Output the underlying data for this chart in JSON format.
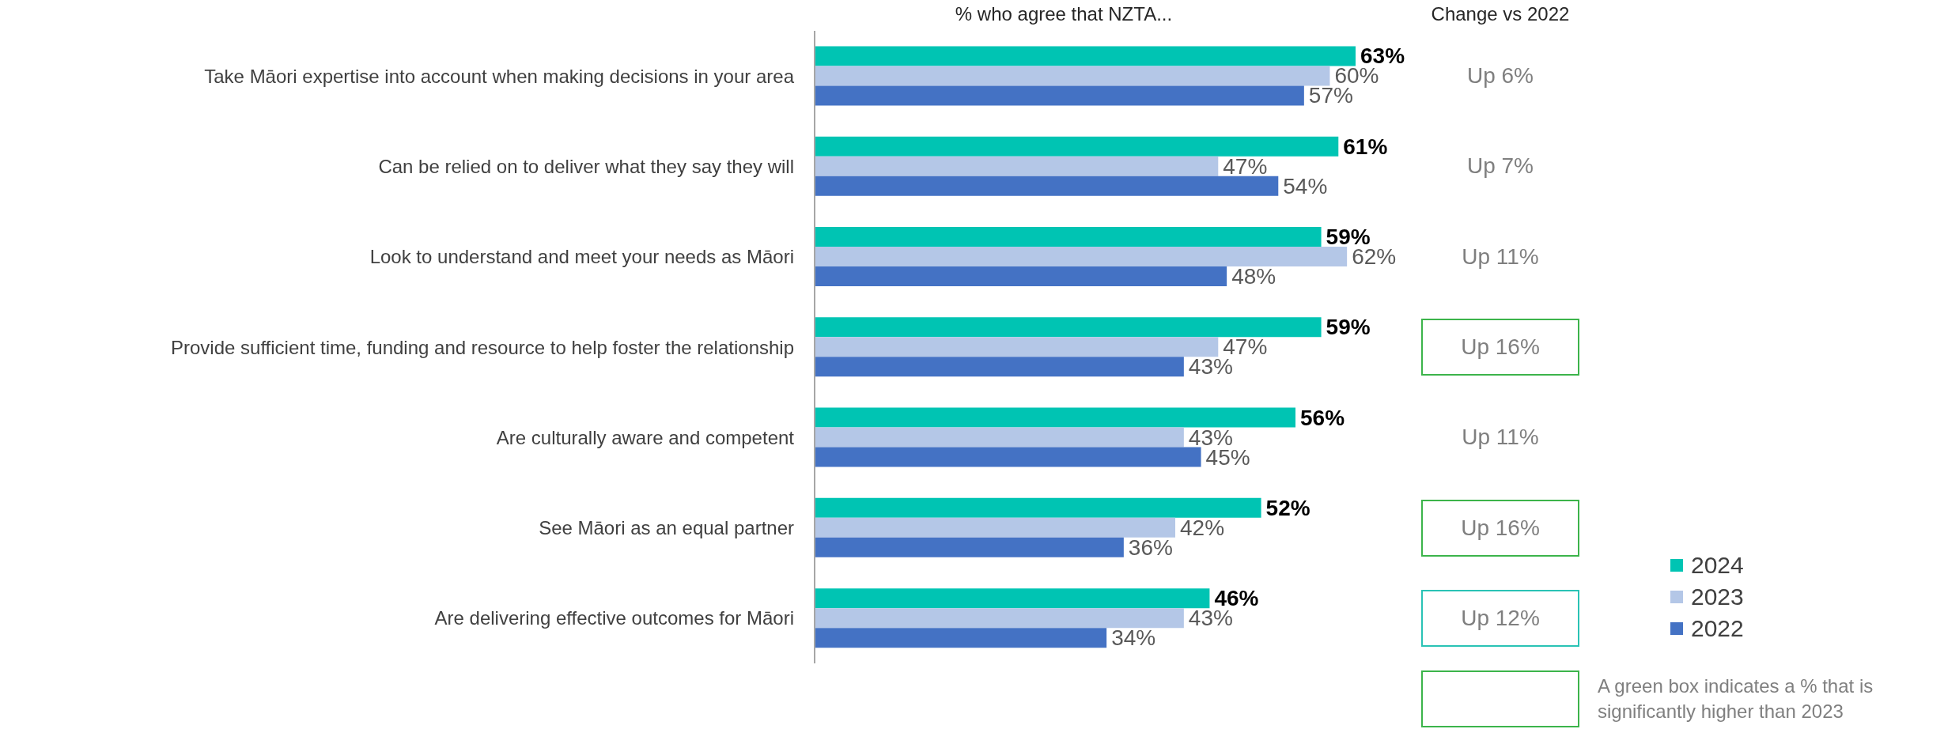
{
  "chart_data": {
    "type": "bar",
    "orientation": "horizontal",
    "title": "% who agree that NZTA...",
    "categories": [
      "Take Māori expertise into account when making decisions in your area",
      "Can be relied on to deliver what they say they will",
      "Look to understand and meet your needs as Māori",
      "Provide sufficient time, funding and resource to help foster the relationship",
      "Are culturally aware and competent",
      "See Māori as an equal partner",
      "Are delivering effective outcomes for Māori"
    ],
    "series": [
      {
        "name": "2024",
        "color": "#00c4b3",
        "values": [
          63,
          61,
          59,
          59,
          56,
          52,
          46
        ],
        "value_labels": [
          "63%",
          "61%",
          "59%",
          "59%",
          "56%",
          "52%",
          "46%"
        ]
      },
      {
        "name": "2023",
        "color": "#b4c7e7",
        "values": [
          60,
          47,
          62,
          47,
          43,
          42,
          43
        ],
        "value_labels": [
          "60%",
          "47%",
          "62%",
          "47%",
          "43%",
          "42%",
          "43%"
        ]
      },
      {
        "name": "2022",
        "color": "#4472c4",
        "values": [
          57,
          54,
          48,
          43,
          45,
          36,
          34
        ],
        "value_labels": [
          "57%",
          "54%",
          "48%",
          "43%",
          "45%",
          "36%",
          "34%"
        ]
      }
    ],
    "tick_labels": "y",
    "legend": "bottom right",
    "annotations": [
      "Change vs 2022",
      "Up 6%",
      "Up 7%",
      "Up 11%",
      "Up 16%",
      "Up 11%",
      "Up 16%",
      "Up 12%",
      "A green box indicates a % that is significantly higher than 2023"
    ]
  }
}
